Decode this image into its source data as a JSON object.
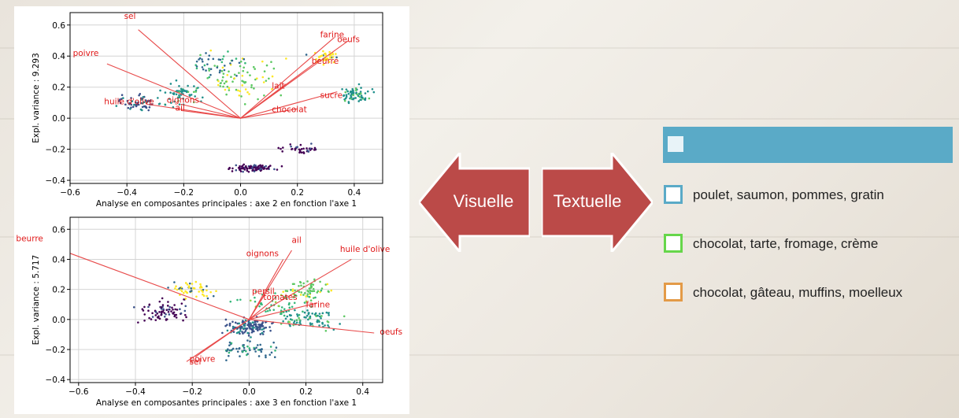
{
  "colors": {
    "axis_arrows": "#e84a4a",
    "arrow_fill": "#bb4a48",
    "legend_header": "#5aaac7",
    "legend_blue": "#5aaac7",
    "legend_green": "#66d64a",
    "legend_orange": "#e39a47"
  },
  "arrows": {
    "left_label": "Visuelle",
    "right_label": "Textuelle"
  },
  "legend": {
    "items": [
      {
        "label": "poulet, saumon, pommes, gratin",
        "color": "#5aaac7"
      },
      {
        "label": "chocolat, tarte, fromage, crème",
        "color": "#66d64a"
      },
      {
        "label": "chocolat, gâteau, muffins, moelleux",
        "color": "#e39a47"
      }
    ]
  },
  "chart_data": [
    {
      "type": "scatter",
      "title": "",
      "xlabel": "Analyse en composantes principales : axe 2 en fonction l'axe 1",
      "ylabel": "Expl. variance : 9.293",
      "xlim": [
        -0.6,
        0.5
      ],
      "ylim": [
        -0.42,
        0.68
      ],
      "xticks": [
        -0.6,
        -0.4,
        -0.2,
        0.0,
        0.2,
        0.4
      ],
      "yticks": [
        -0.4,
        -0.2,
        0.0,
        0.2,
        0.4,
        0.6
      ],
      "xtick_labels": [
        "−0.6",
        "−0.4",
        "−0.2",
        "0.0",
        "0.2",
        "0.4"
      ],
      "ytick_labels": [
        "−0.4",
        "−0.2",
        "0.0",
        "0.2",
        "0.4",
        "0.6"
      ],
      "grid": true,
      "loadings": [
        {
          "label": "sel",
          "x": -0.36,
          "y": 0.57,
          "lx": -0.41,
          "ly": 0.64
        },
        {
          "label": "poivre",
          "x": -0.47,
          "y": 0.35,
          "lx": -0.59,
          "ly": 0.4
        },
        {
          "label": "huile d'olive",
          "x": -0.33,
          "y": 0.09,
          "lx": -0.48,
          "ly": 0.09
        },
        {
          "label": "oignons",
          "x": -0.21,
          "y": 0.09,
          "lx": -0.26,
          "ly": 0.1
        },
        {
          "label": "ail",
          "x": -0.21,
          "y": 0.05,
          "lx": -0.23,
          "ly": 0.05
        },
        {
          "label": "farine",
          "x": 0.33,
          "y": 0.52,
          "lx": 0.28,
          "ly": 0.52
        },
        {
          "label": "oeufs",
          "x": 0.38,
          "y": 0.5,
          "lx": 0.34,
          "ly": 0.49
        },
        {
          "label": "beurre",
          "x": 0.28,
          "y": 0.38,
          "lx": 0.25,
          "ly": 0.35
        },
        {
          "label": "lait",
          "x": 0.16,
          "y": 0.22,
          "lx": 0.11,
          "ly": 0.19
        },
        {
          "label": "sucre",
          "x": 0.34,
          "y": 0.17,
          "lx": 0.28,
          "ly": 0.13
        },
        {
          "label": "chocolat",
          "x": 0.2,
          "y": 0.06,
          "lx": 0.11,
          "ly": 0.04
        }
      ]
    },
    {
      "type": "scatter",
      "title": "",
      "xlabel": "Analyse en composantes principales : axe 3 en fonction l'axe 1",
      "ylabel": "Expl. variance : 5.717",
      "xlim": [
        -0.63,
        0.47
      ],
      "ylim": [
        -0.42,
        0.68
      ],
      "xticks": [
        -0.6,
        -0.4,
        -0.2,
        0.0,
        0.2,
        0.4
      ],
      "yticks": [
        -0.4,
        -0.2,
        0.0,
        0.2,
        0.4,
        0.6
      ],
      "xtick_labels": [
        "−0.6",
        "−0.4",
        "−0.2",
        "0.0",
        "0.2",
        "0.4"
      ],
      "ytick_labels": [
        "−0.4",
        "−0.2",
        "0.0",
        "0.2",
        "0.4",
        "0.6"
      ],
      "grid": true,
      "loadings": [
        {
          "label": "beurre",
          "x": -0.63,
          "y": 0.44,
          "lx": -0.82,
          "ly": 0.52
        },
        {
          "label": "ail",
          "x": 0.15,
          "y": 0.46,
          "lx": 0.15,
          "ly": 0.51
        },
        {
          "label": "oignons",
          "x": 0.12,
          "y": 0.4,
          "lx": -0.01,
          "ly": 0.42
        },
        {
          "label": "huile d'olive",
          "x": 0.36,
          "y": 0.4,
          "lx": 0.32,
          "ly": 0.45
        },
        {
          "label": "persil",
          "x": 0.06,
          "y": 0.18,
          "lx": 0.01,
          "ly": 0.17
        },
        {
          "label": "tomates",
          "x": 0.09,
          "y": 0.14,
          "lx": 0.05,
          "ly": 0.13
        },
        {
          "label": "farine",
          "x": 0.24,
          "y": 0.11,
          "lx": 0.2,
          "ly": 0.08
        },
        {
          "label": "oeufs",
          "x": 0.44,
          "y": -0.09,
          "lx": 0.46,
          "ly": -0.1
        },
        {
          "label": "poivre",
          "x": -0.19,
          "y": -0.25,
          "lx": -0.21,
          "ly": -0.28
        },
        {
          "label": "sel",
          "x": -0.22,
          "y": -0.28,
          "lx": -0.21,
          "ly": -0.3
        }
      ]
    }
  ]
}
